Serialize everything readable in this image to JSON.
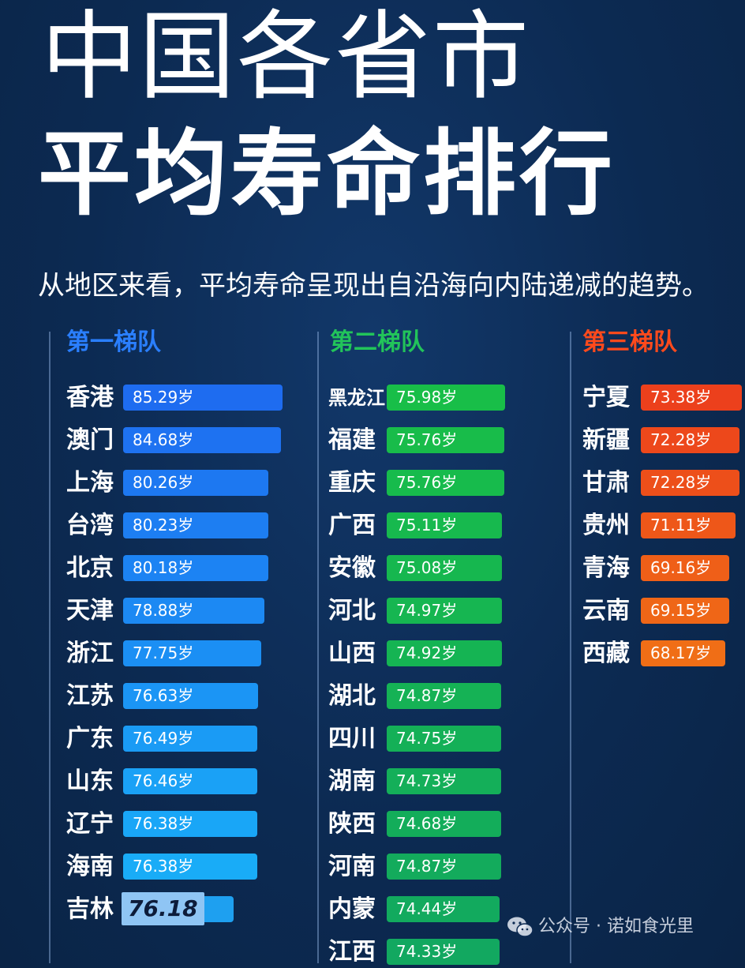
{
  "title_line1": "中国各省市",
  "title_line2": "平均寿命排行",
  "subtitle": "从地区来看，平均寿命呈现出自沿海向内陆递减的趋势。",
  "watermark": "公众号 · 诺如食光里",
  "chart_data": {
    "type": "bar",
    "orientation": "horizontal",
    "unit": "岁",
    "groups": [
      {
        "name": "第一梯队",
        "color": "#1e6cf0",
        "items": [
          {
            "label": "香港",
            "value": 85.29,
            "display": "85.29岁"
          },
          {
            "label": "澳门",
            "value": 84.68,
            "display": "84.68岁"
          },
          {
            "label": "上海",
            "value": 80.26,
            "display": "80.26岁"
          },
          {
            "label": "台湾",
            "value": 80.23,
            "display": "80.23岁"
          },
          {
            "label": "北京",
            "value": 80.18,
            "display": "80.18岁"
          },
          {
            "label": "天津",
            "value": 78.88,
            "display": "78.88岁"
          },
          {
            "label": "浙江",
            "value": 77.75,
            "display": "77.75岁"
          },
          {
            "label": "江苏",
            "value": 76.63,
            "display": "76.63岁"
          },
          {
            "label": "广东",
            "value": 76.49,
            "display": "76.49岁"
          },
          {
            "label": "山东",
            "value": 76.46,
            "display": "76.46岁"
          },
          {
            "label": "辽宁",
            "value": 76.38,
            "display": "76.38岁"
          },
          {
            "label": "海南",
            "value": 76.38,
            "display": "76.38岁"
          },
          {
            "label": "吉林",
            "value": 76.18,
            "display": "76.18"
          }
        ]
      },
      {
        "name": "第二梯队",
        "color": "#18b548",
        "items": [
          {
            "label": "黑龙江",
            "value": 75.98,
            "display": "75.98岁"
          },
          {
            "label": "福建",
            "value": 75.76,
            "display": "75.76岁"
          },
          {
            "label": "重庆",
            "value": 75.76,
            "display": "75.76岁"
          },
          {
            "label": "广西",
            "value": 75.11,
            "display": "75.11岁"
          },
          {
            "label": "安徽",
            "value": 75.08,
            "display": "75.08岁"
          },
          {
            "label": "河北",
            "value": 74.97,
            "display": "74.97岁"
          },
          {
            "label": "山西",
            "value": 74.92,
            "display": "74.92岁"
          },
          {
            "label": "湖北",
            "value": 74.87,
            "display": "74.87岁"
          },
          {
            "label": "四川",
            "value": 74.75,
            "display": "74.75岁"
          },
          {
            "label": "湖南",
            "value": 74.73,
            "display": "74.73岁"
          },
          {
            "label": "陕西",
            "value": 74.68,
            "display": "74.68岁"
          },
          {
            "label": "河南",
            "value": 74.87,
            "display": "74.87岁"
          },
          {
            "label": "内蒙",
            "value": 74.44,
            "display": "74.44岁"
          },
          {
            "label": "江西",
            "value": 74.33,
            "display": "74.33岁"
          }
        ]
      },
      {
        "name": "第三梯队",
        "color": "#f0581c",
        "items": [
          {
            "label": "宁夏",
            "value": 73.38,
            "display": "73.38岁"
          },
          {
            "label": "新疆",
            "value": 72.28,
            "display": "72.28岁"
          },
          {
            "label": "甘肃",
            "value": 72.28,
            "display": "72.28岁"
          },
          {
            "label": "贵州",
            "value": 71.11,
            "display": "71.11岁"
          },
          {
            "label": "青海",
            "value": 69.16,
            "display": "69.16岁"
          },
          {
            "label": "云南",
            "value": 69.15,
            "display": "69.15岁"
          },
          {
            "label": "西藏",
            "value": 68.17,
            "display": "68.17岁"
          }
        ]
      }
    ],
    "colors": {
      "tier1_heading": "#2a7fff",
      "tier2_heading": "#22c45a",
      "tier3_heading": "#ff4a1c",
      "background": "#0d2b52"
    }
  }
}
